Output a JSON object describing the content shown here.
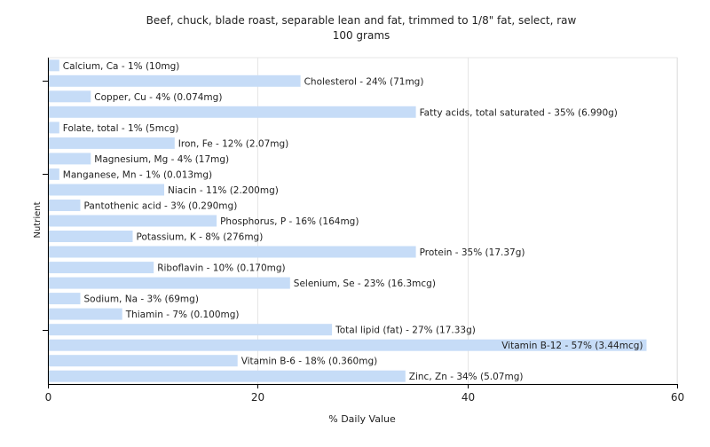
{
  "chart_data": {
    "type": "bar",
    "orientation": "horizontal",
    "title": "Beef, chuck, blade roast, separable lean and fat, trimmed to 1/8\" fat, select, raw",
    "subtitle": "100 grams",
    "xlabel": "% Daily Value",
    "ylabel": "Nutrient",
    "xlim": [
      0,
      60
    ],
    "xticks": [
      "0",
      "20",
      "40",
      "60"
    ],
    "grid": true,
    "bar_color": "#c6dcf7",
    "categories": [
      "Calcium, Ca",
      "Cholesterol",
      "Copper, Cu",
      "Fatty acids, total saturated",
      "Folate, total",
      "Iron, Fe",
      "Magnesium, Mg",
      "Manganese, Mn",
      "Niacin",
      "Pantothenic acid",
      "Phosphorus, P",
      "Potassium, K",
      "Protein",
      "Riboflavin",
      "Selenium, Se",
      "Sodium, Na",
      "Thiamin",
      "Total lipid (fat)",
      "Vitamin B-12",
      "Vitamin B-6",
      "Zinc, Zn"
    ],
    "values": [
      1,
      24,
      4,
      35,
      1,
      12,
      4,
      1,
      11,
      3,
      16,
      8,
      35,
      10,
      23,
      3,
      7,
      27,
      57,
      18,
      34
    ],
    "labels": [
      "Calcium, Ca - 1% (10mg)",
      "Cholesterol - 24% (71mg)",
      "Copper, Cu - 4% (0.074mg)",
      "Fatty acids, total saturated - 35% (6.990g)",
      "Folate, total - 1% (5mcg)",
      "Iron, Fe - 12% (2.07mg)",
      "Magnesium, Mg - 4% (17mg)",
      "Manganese, Mn - 1% (0.013mg)",
      "Niacin - 11% (2.200mg)",
      "Pantothenic acid - 3% (0.290mg)",
      "Phosphorus, P - 16% (164mg)",
      "Potassium, K - 8% (276mg)",
      "Protein - 35% (17.37g)",
      "Riboflavin - 10% (0.170mg)",
      "Selenium, Se - 23% (16.3mcg)",
      "Sodium, Na - 3% (69mg)",
      "Thiamin - 7% (0.100mg)",
      "Total lipid (fat) - 27% (17.33g)",
      "Vitamin B-12 - 57% (3.44mcg)",
      "Vitamin B-6 - 18% (0.360mg)",
      "Zinc, Zn - 34% (5.07mg)"
    ]
  }
}
